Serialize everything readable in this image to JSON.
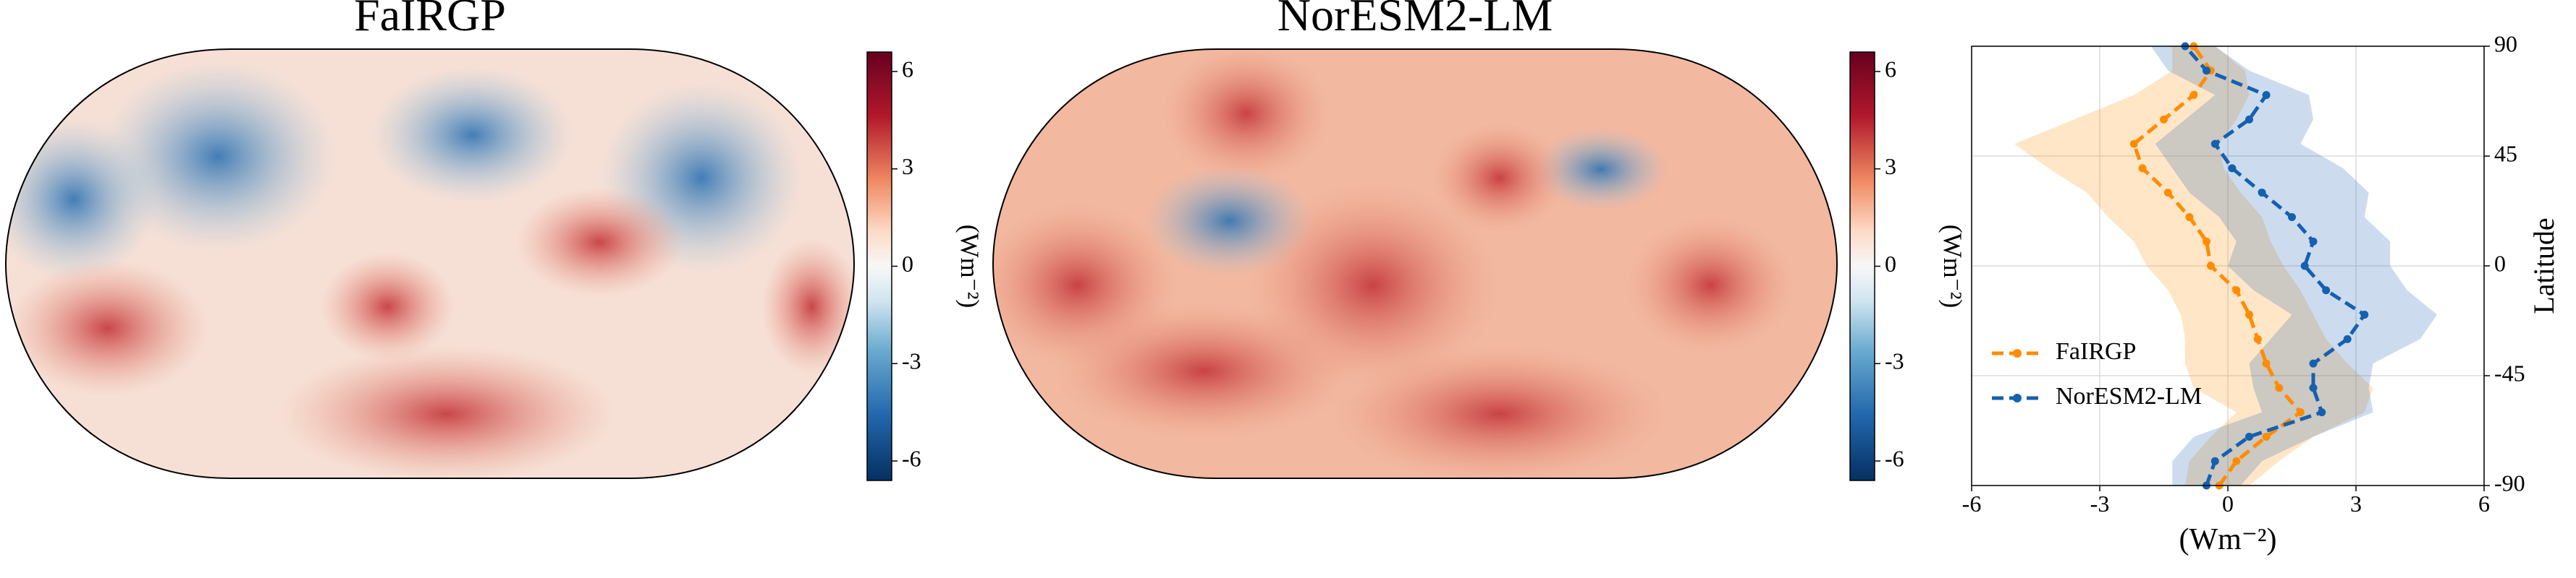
{
  "chart_data": [
    {
      "type": "map",
      "title": "FaIRGP",
      "colorbar_label": "(Wm⁻²)",
      "clim": [
        -6.6,
        6.6
      ],
      "cticks": [
        -6,
        -3,
        0,
        3,
        6
      ]
    },
    {
      "type": "map",
      "title": "NorESM2-LM",
      "colorbar_label": "(Wm⁻²)",
      "clim": [
        -6.6,
        6.6
      ],
      "cticks": [
        -6,
        -3,
        0,
        3,
        6
      ]
    },
    {
      "type": "line",
      "xlabel": "(Wm⁻²)",
      "ylabel": "Latitude",
      "y": [
        -90,
        -80,
        -70,
        -60,
        -50,
        -40,
        -30,
        -20,
        -10,
        0,
        10,
        20,
        30,
        40,
        50,
        60,
        70,
        80,
        90
      ],
      "xlim": [
        -6,
        6
      ],
      "xticks": [
        -6,
        -3,
        0,
        3,
        6
      ],
      "ylim": [
        -90,
        90
      ],
      "yticks": [
        -90,
        -45,
        0,
        45,
        90
      ],
      "grid": true,
      "legend": "lower left",
      "series": [
        {
          "name": "FaIRGP",
          "color": "#ff8c00",
          "values": [
            -0.2,
            0.2,
            0.9,
            1.7,
            1.2,
            0.9,
            0.7,
            0.5,
            0.2,
            -0.4,
            -0.5,
            -0.9,
            -1.4,
            -2.0,
            -2.2,
            -1.5,
            -0.8,
            -0.4,
            -0.8
          ],
          "upper": [
            0.5,
            1.2,
            2.0,
            3.2,
            3.4,
            2.8,
            2.3,
            2.0,
            1.7,
            1.3,
            1.0,
            0.8,
            0.3,
            -0.1,
            -0.2,
            0.2,
            0.5,
            0.4,
            -0.3
          ],
          "lower": [
            -1.0,
            -0.9,
            -0.4,
            0.2,
            -0.8,
            -1.0,
            -1.0,
            -1.1,
            -1.4,
            -1.9,
            -2.2,
            -2.8,
            -3.3,
            -4.2,
            -5.0,
            -3.6,
            -2.2,
            -1.3,
            -1.3
          ]
        },
        {
          "name": "NorESM2-LM",
          "color": "#1560b0",
          "values": [
            -0.5,
            -0.3,
            0.5,
            2.2,
            2.0,
            2.0,
            2.8,
            3.2,
            2.3,
            1.8,
            2.0,
            1.5,
            0.8,
            0.1,
            -0.3,
            0.5,
            0.9,
            -0.5,
            -1.0
          ],
          "upper": [
            0.3,
            0.8,
            2.0,
            3.4,
            3.3,
            3.4,
            4.5,
            4.9,
            4.2,
            3.8,
            3.8,
            3.2,
            3.3,
            2.7,
            1.7,
            2.0,
            1.9,
            0.5,
            -0.3
          ],
          "lower": [
            -1.3,
            -1.3,
            -0.8,
            0.8,
            0.6,
            0.5,
            1.0,
            1.5,
            0.6,
            0.0,
            0.2,
            -0.2,
            -0.9,
            -1.3,
            -1.7,
            -1.0,
            -0.3,
            -1.4,
            -1.8
          ]
        }
      ]
    }
  ]
}
